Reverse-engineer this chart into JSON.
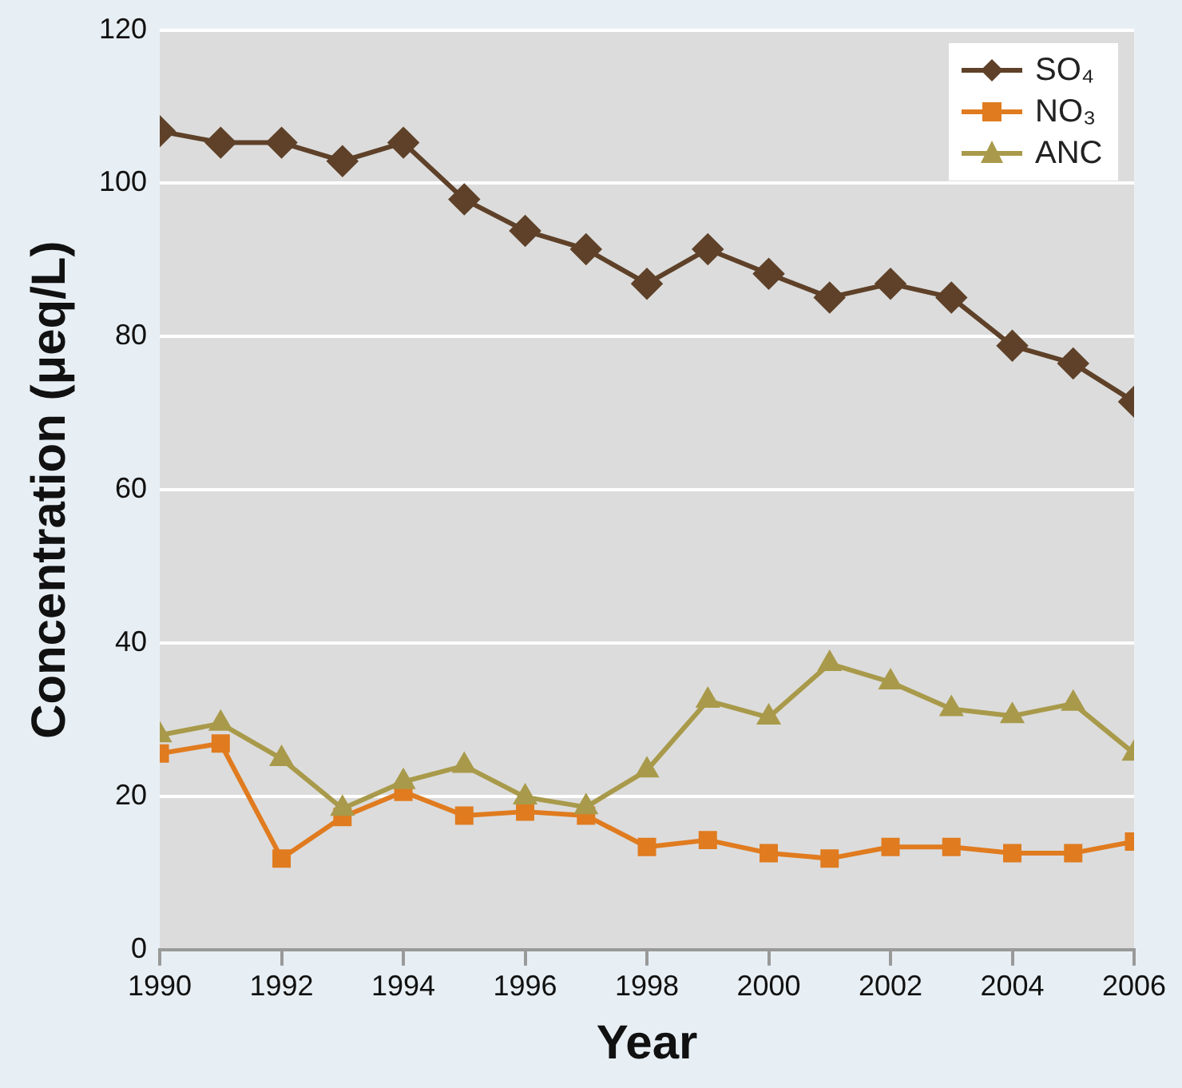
{
  "chart_data": {
    "type": "line",
    "xlabel": "Year",
    "ylabel": "Concentration (μeq/L)",
    "x": [
      1990,
      1991,
      1992,
      1993,
      1994,
      1995,
      1996,
      1997,
      1998,
      1999,
      2000,
      2001,
      2002,
      2003,
      2004,
      2005,
      2006
    ],
    "series": [
      {
        "name": "SO₄",
        "color": "#5e4128",
        "marker": "diamond",
        "values": [
          106.8,
          105.3,
          105.3,
          102.9,
          105.3,
          97.9,
          93.8,
          91.4,
          86.9,
          91.4,
          88.2,
          85.1,
          86.9,
          85.1,
          78.8,
          76.5,
          71.5
        ]
      },
      {
        "name": "NO₃",
        "color": "#e07b1f",
        "marker": "square",
        "values": [
          25.6,
          26.9,
          11.9,
          17.3,
          20.6,
          17.5,
          18,
          17.5,
          13.4,
          14.3,
          12.6,
          11.9,
          13.4,
          13.4,
          12.6,
          12.6,
          14.1
        ]
      },
      {
        "name": "ANC",
        "color": "#a89a4a",
        "marker": "triangle",
        "values": [
          28,
          29.5,
          24.9,
          18.4,
          21.9,
          24,
          19.9,
          18.6,
          23.4,
          32.5,
          30.3,
          37.3,
          34.9,
          31.4,
          30.5,
          32.1,
          25.6
        ]
      }
    ],
    "xlim": [
      1990,
      2006
    ],
    "xticks": [
      1990,
      1992,
      1994,
      1996,
      1998,
      2000,
      2002,
      2004,
      2006
    ],
    "ylim": [
      0,
      120
    ],
    "yticks": [
      0,
      20,
      40,
      60,
      80,
      100,
      120
    ],
    "grid": "y",
    "legend": "top right"
  }
}
